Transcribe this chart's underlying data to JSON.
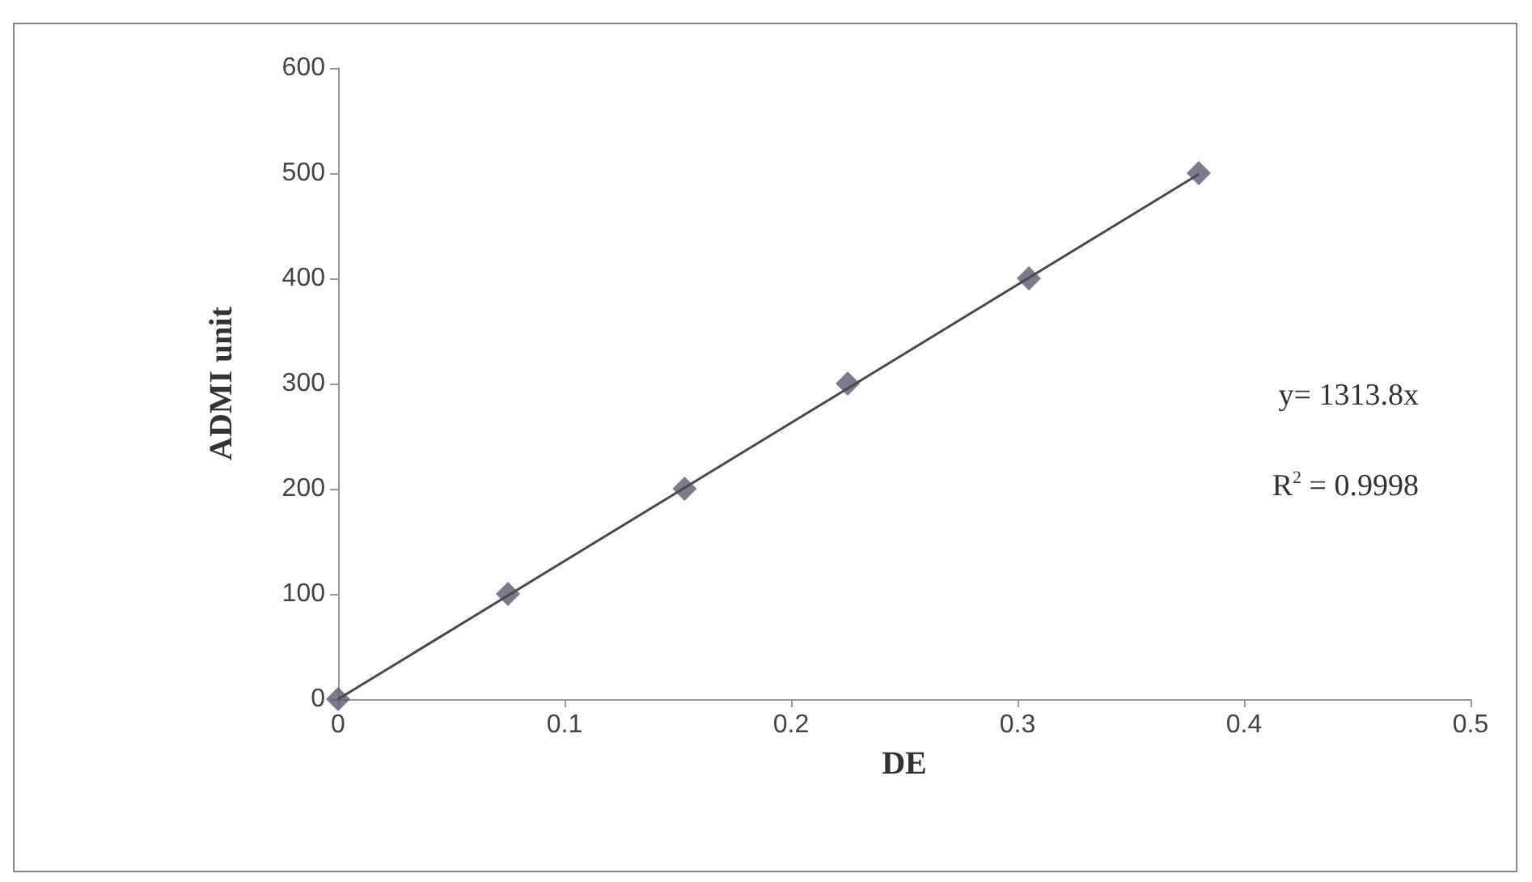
{
  "chart_data": {
    "type": "scatter",
    "xlabel": "DE",
    "ylabel": "ADMI unit",
    "xlim": [
      0,
      0.5
    ],
    "xticks": [
      0,
      0.1,
      0.2,
      0.3,
      0.4,
      0.5
    ],
    "ylim": [
      0,
      600
    ],
    "yticks": [
      0,
      100,
      200,
      300,
      400,
      500,
      600
    ],
    "grid": false,
    "marker": "diamond",
    "series": [
      {
        "color": "#5a5a6e",
        "x": [
          0,
          0.075,
          0.153,
          0.225,
          0.305,
          0.38
        ],
        "values": [
          0,
          100,
          200,
          300,
          400,
          500
        ]
      },
      {
        "type": "line",
        "color": "#4a4a4a",
        "x": [
          0,
          0.38
        ],
        "values": [
          0,
          499
        ],
        "marker": "none",
        "line_style": "solid"
      }
    ],
    "annotations": [
      "y= 1313.8x",
      "R$^{2}$ = 0.9998"
    ]
  }
}
